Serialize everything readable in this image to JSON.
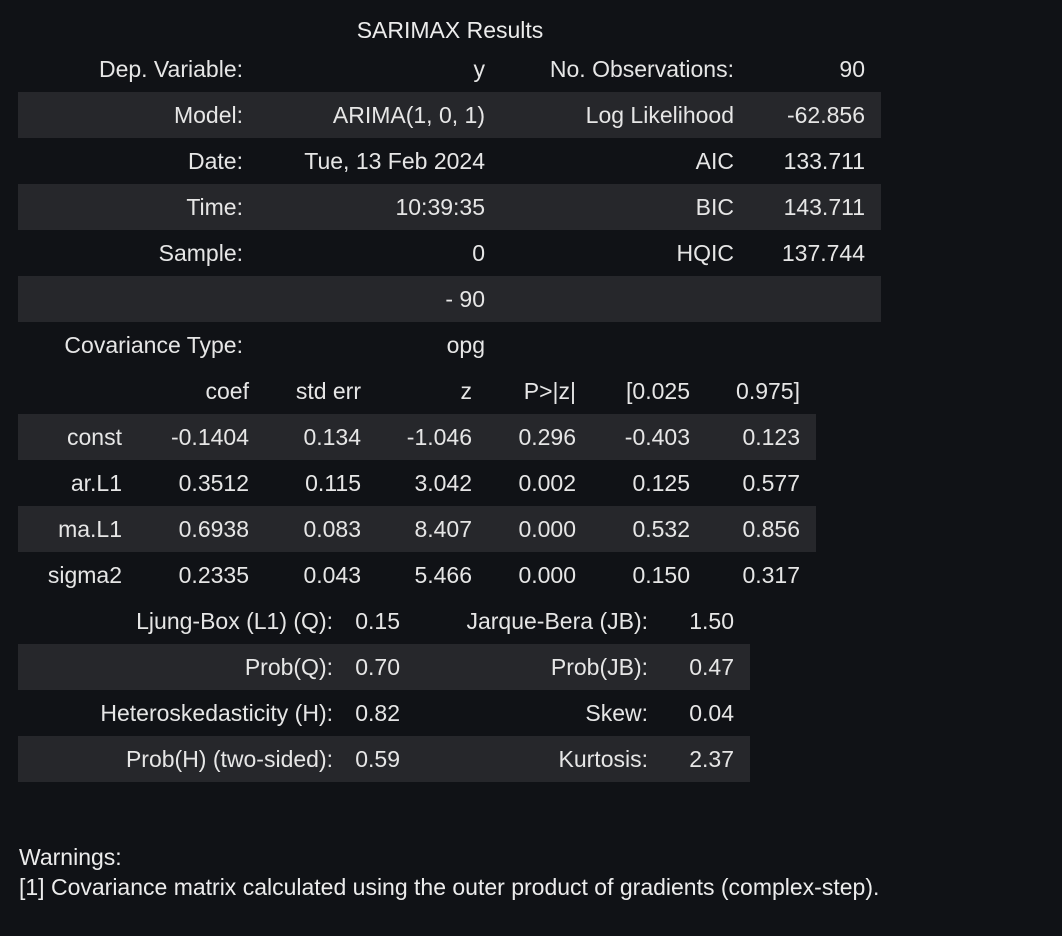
{
  "caption": "SARIMAX Results",
  "summary": {
    "rows": [
      {
        "label1": "Dep. Variable:",
        "value1": "y",
        "label2": "No. Observations:",
        "value2": "90"
      },
      {
        "label1": "Model:",
        "value1": "ARIMA(1, 0, 1)",
        "label2": "Log Likelihood",
        "value2": "-62.856"
      },
      {
        "label1": "Date:",
        "value1": "Tue, 13 Feb 2024",
        "label2": "AIC",
        "value2": "133.711"
      },
      {
        "label1": "Time:",
        "value1": "10:39:35",
        "label2": "BIC",
        "value2": "143.711"
      },
      {
        "label1": "Sample:",
        "value1": "0",
        "label2": "HQIC",
        "value2": "137.744"
      },
      {
        "label1": "",
        "value1": "- 90",
        "label2": "",
        "value2": ""
      },
      {
        "label1": "Covariance Type:",
        "value1": "opg",
        "label2": "",
        "value2": ""
      }
    ]
  },
  "coefficients": {
    "headers": [
      "",
      "coef",
      "std err",
      "z",
      "P>|z|",
      "[0.025",
      "0.975]"
    ],
    "rows": [
      {
        "name": "const",
        "coef": "-0.1404",
        "std_err": "0.134",
        "z": "-1.046",
        "p": "0.296",
        "lower": "-0.403",
        "upper": "0.123"
      },
      {
        "name": "ar.L1",
        "coef": "0.3512",
        "std_err": "0.115",
        "z": "3.042",
        "p": "0.002",
        "lower": "0.125",
        "upper": "0.577"
      },
      {
        "name": "ma.L1",
        "coef": "0.6938",
        "std_err": "0.083",
        "z": "8.407",
        "p": "0.000",
        "lower": "0.532",
        "upper": "0.856"
      },
      {
        "name": "sigma2",
        "coef": "0.2335",
        "std_err": "0.043",
        "z": "5.466",
        "p": "0.000",
        "lower": "0.150",
        "upper": "0.317"
      }
    ]
  },
  "diagnostics": {
    "rows": [
      {
        "label1": "Ljung-Box (L1) (Q):",
        "value1": "0.15",
        "label2": "Jarque-Bera (JB):",
        "value2": "1.50"
      },
      {
        "label1": "Prob(Q):",
        "value1": "0.70",
        "label2": "Prob(JB):",
        "value2": "0.47"
      },
      {
        "label1": "Heteroskedasticity (H):",
        "value1": "0.82",
        "label2": "Skew:",
        "value2": "0.04"
      },
      {
        "label1": "Prob(H) (two-sided):",
        "value1": "0.59",
        "label2": "Kurtosis:",
        "value2": "2.37"
      }
    ]
  },
  "warnings": {
    "title": "Warnings:",
    "lines": [
      "[1] Covariance matrix calculated using the outer product of gradients (complex-step)."
    ]
  }
}
